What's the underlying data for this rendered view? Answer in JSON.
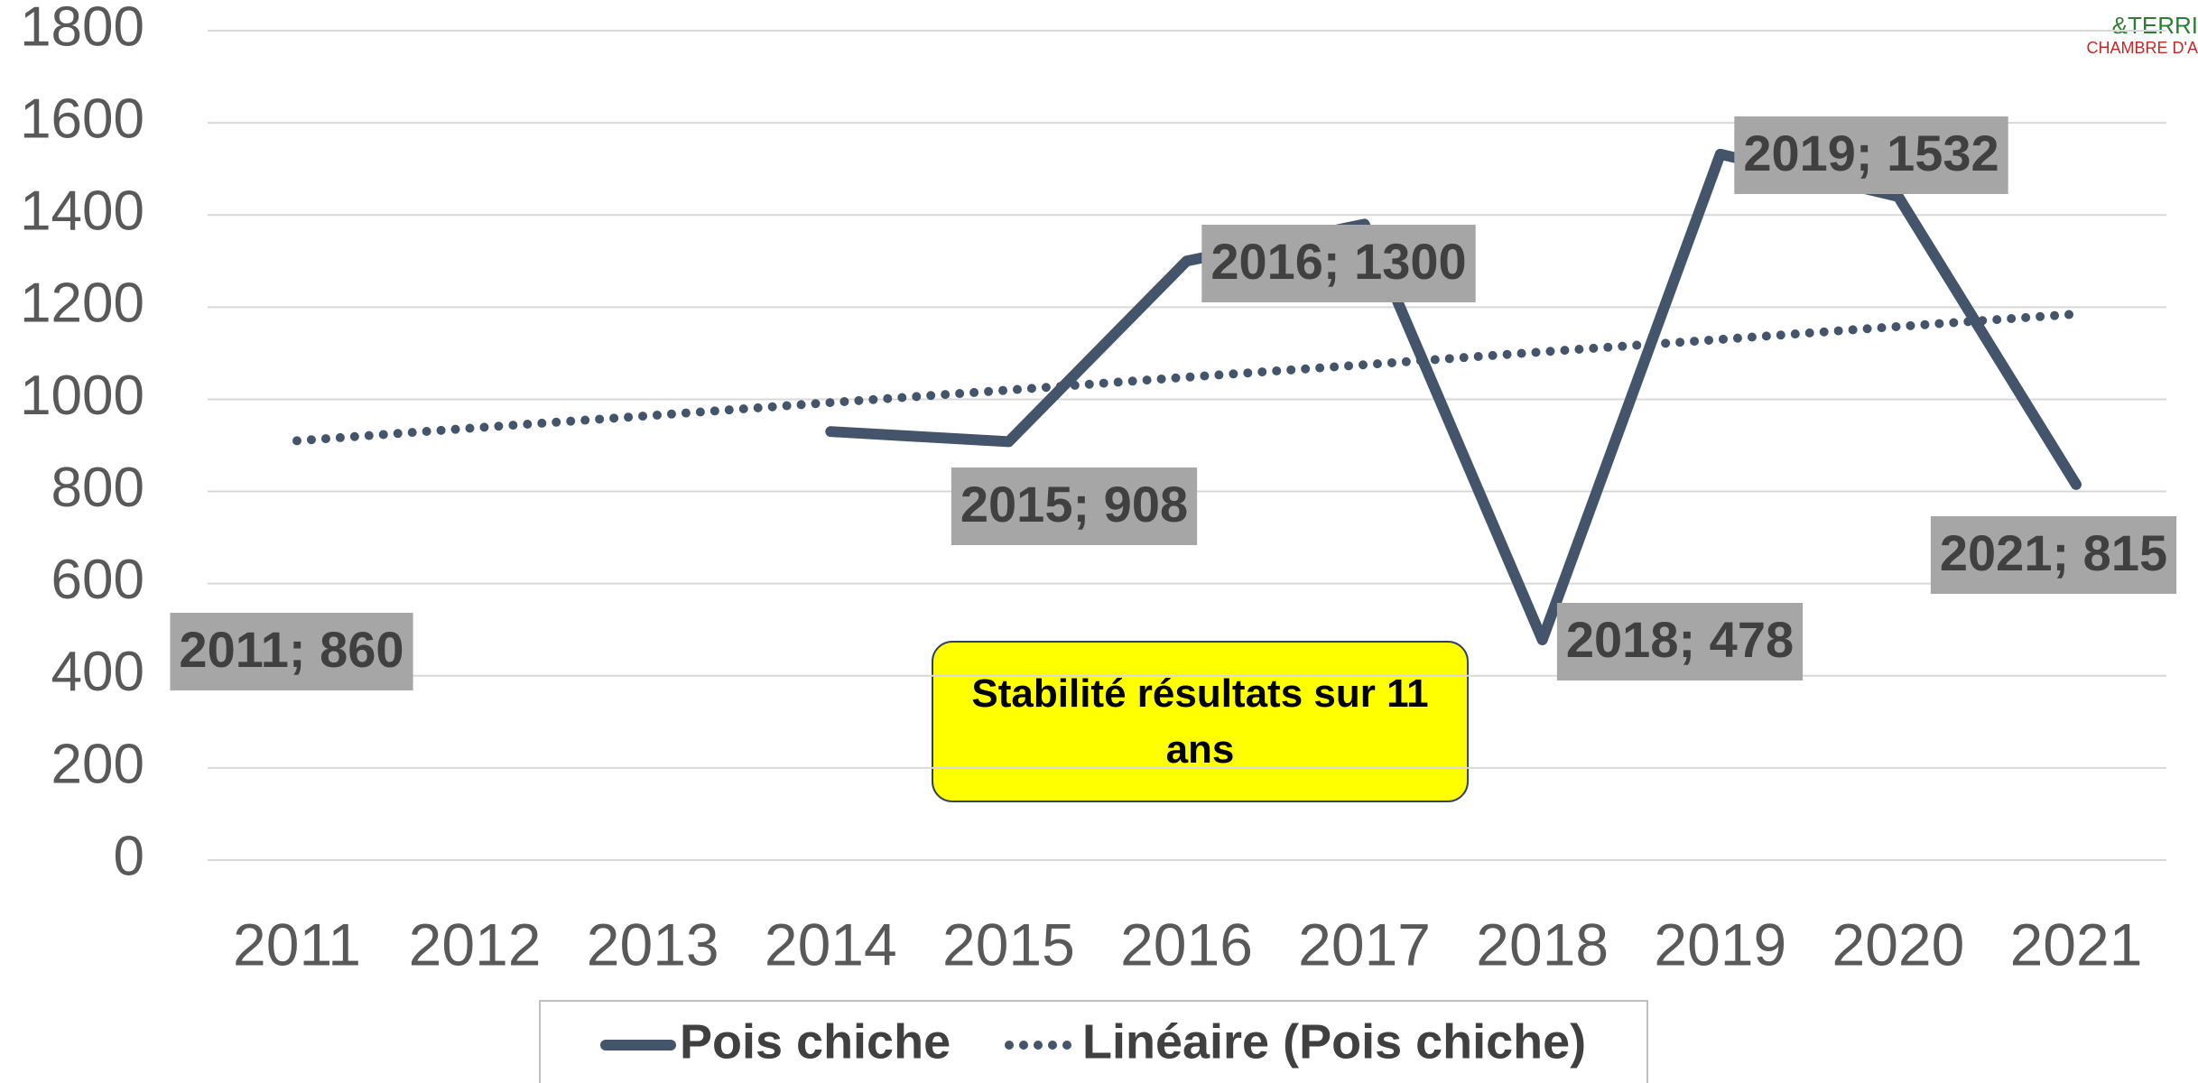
{
  "chart_data": {
    "type": "line",
    "categories": [
      "2011",
      "2012",
      "2013",
      "2014",
      "2015",
      "2016",
      "2017",
      "2018",
      "2019",
      "2020",
      "2021"
    ],
    "series": [
      {
        "name": "Pois chiche",
        "color": "#44546a",
        "style": "solid",
        "values": [
          860,
          null,
          null,
          930,
          908,
          1300,
          1380,
          478,
          1532,
          1440,
          815
        ],
        "value_labels": [
          "2011; 860",
          null,
          null,
          null,
          "2015; 908",
          "2016; 1300",
          null,
          "2018; 478",
          "2019; 1532",
          null,
          "2021; 815"
        ]
      },
      {
        "name": "Linéaire (Pois chiche)",
        "color": "#44546a",
        "style": "dotted",
        "values": [
          910,
          938,
          965,
          993,
          1020,
          1048,
          1075,
          1103,
          1130,
          1158,
          1185
        ]
      }
    ],
    "ylim": [
      0,
      1800
    ],
    "yticks": [
      0,
      200,
      400,
      600,
      800,
      1000,
      1200,
      1400,
      1600,
      1800
    ],
    "grid": true,
    "annotation": "Stabilité résultats sur 11 ans",
    "logo": [
      "&TERRI",
      "CHAMBRE D'A"
    ]
  }
}
